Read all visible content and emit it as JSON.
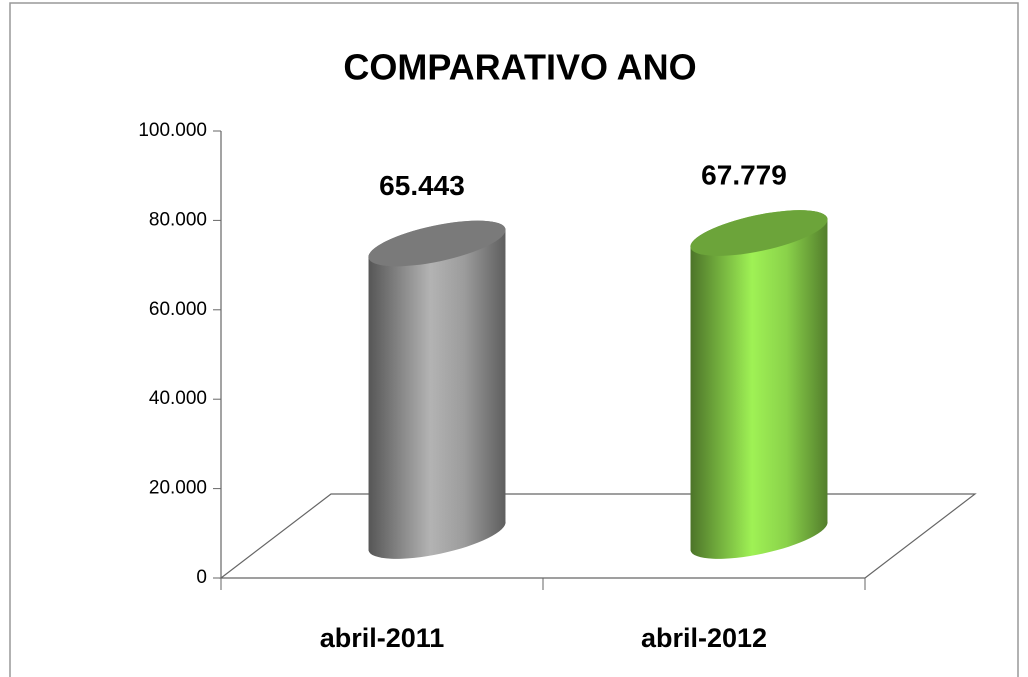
{
  "chart_data": {
    "type": "bar3d-cylinder",
    "title": "COMPARATIVO ANO",
    "categories": [
      "abril-2011",
      "abril-2012"
    ],
    "values": [
      65443,
      67779
    ],
    "value_labels": [
      "65.443",
      "67.779"
    ],
    "colors": [
      "#9c9c9c",
      "#8ad24a"
    ],
    "ylim": [
      0,
      100000
    ],
    "yticks": [
      0,
      {
        "value": 20000,
        "label": "20.000"
      },
      {
        "value": 40000,
        "label": "40.000"
      },
      {
        "value": 60000,
        "label": "60.000"
      },
      {
        "value": 80000,
        "label": "80.000"
      },
      {
        "value": 100000,
        "label": "100.000"
      }
    ],
    "grid": false
  }
}
